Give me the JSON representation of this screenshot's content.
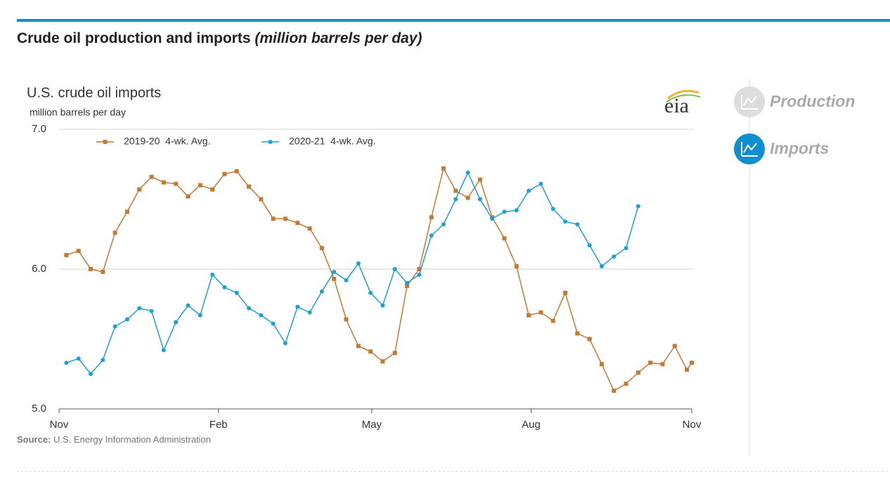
{
  "header": {
    "title": "Crude oil production and imports",
    "subtitle": "(million barrels per day)"
  },
  "tabs": [
    "Production",
    "Imports"
  ],
  "logo": "eia",
  "source": {
    "label": "Source:",
    "text": "U.S. Energy Information Administration"
  },
  "chart_data": {
    "type": "line",
    "title": "U.S. crude oil imports",
    "y_label": "million barrels per day",
    "x": [
      0.6,
      1.6,
      2.6,
      3.6,
      4.6,
      5.6,
      6.6,
      7.6,
      8.6,
      9.6,
      10.6,
      11.6,
      12.6,
      13.6,
      14.6,
      15.6,
      16.6,
      17.6,
      18.6,
      19.6,
      20.6,
      21.6,
      22.6,
      23.6,
      24.6,
      25.6,
      26.6,
      27.6,
      28.6,
      29.6,
      30.6,
      31.6,
      32.6,
      33.6,
      34.6,
      35.6,
      36.6,
      37.6,
      38.6,
      39.6,
      40.6,
      41.6,
      42.6,
      43.6,
      44.6,
      45.6,
      46.6,
      47.6,
      48.6,
      49.6,
      50.6,
      51.6,
      52.0
    ],
    "series": [
      {
        "name": "2019-20  4-wk. Avg.",
        "color": "#c47a32",
        "marker": "square",
        "values": [
          6.1,
          6.13,
          6.0,
          5.98,
          6.26,
          6.41,
          6.57,
          6.66,
          6.62,
          6.61,
          6.52,
          6.6,
          6.57,
          6.68,
          6.7,
          6.59,
          6.5,
          6.36,
          6.36,
          6.33,
          6.29,
          6.15,
          5.93,
          5.64,
          5.45,
          5.41,
          5.34,
          5.4,
          5.88,
          6.0,
          6.37,
          6.72,
          6.56,
          6.51,
          6.64,
          6.37,
          6.22,
          6.02,
          5.67,
          5.69,
          5.63,
          5.83,
          5.54,
          5.5,
          5.32,
          5.13,
          5.18,
          5.26,
          5.33,
          5.32,
          5.45,
          5.28,
          5.33
        ]
      },
      {
        "name": "2020-21  4-wk. Avg.",
        "color": "#1ba1d8",
        "marker": "circle",
        "values": [
          5.33,
          5.36,
          5.25,
          5.35,
          5.59,
          5.64,
          5.72,
          5.7,
          5.42,
          5.62,
          5.74,
          5.67,
          5.96,
          5.87,
          5.83,
          5.72,
          5.67,
          5.61,
          5.47,
          5.73,
          5.69,
          5.84,
          5.98,
          5.92,
          6.04,
          5.83,
          5.74,
          6.0,
          5.9,
          5.96,
          6.24,
          6.32,
          6.5,
          6.69,
          6.5,
          6.36,
          6.41,
          6.42,
          6.56,
          6.61,
          6.43,
          6.34,
          6.32,
          6.17,
          6.02,
          6.09,
          6.15,
          6.45,
          null,
          null,
          null,
          null,
          null
        ]
      }
    ],
    "xlim": [
      0,
      52
    ],
    "xticks": [
      {
        "value": 0,
        "label": "Nov"
      },
      {
        "value": 13.1,
        "label": "Feb"
      },
      {
        "value": 25.7,
        "label": "May"
      },
      {
        "value": 38.8,
        "label": "Aug"
      },
      {
        "value": 52,
        "label": "Nov"
      }
    ],
    "ylim": [
      5,
      7
    ],
    "yticks": [
      {
        "value": 5,
        "label": "5.0"
      },
      {
        "value": 6,
        "label": "6.0"
      },
      {
        "value": 7,
        "label": "7.0"
      }
    ],
    "grid": true
  }
}
